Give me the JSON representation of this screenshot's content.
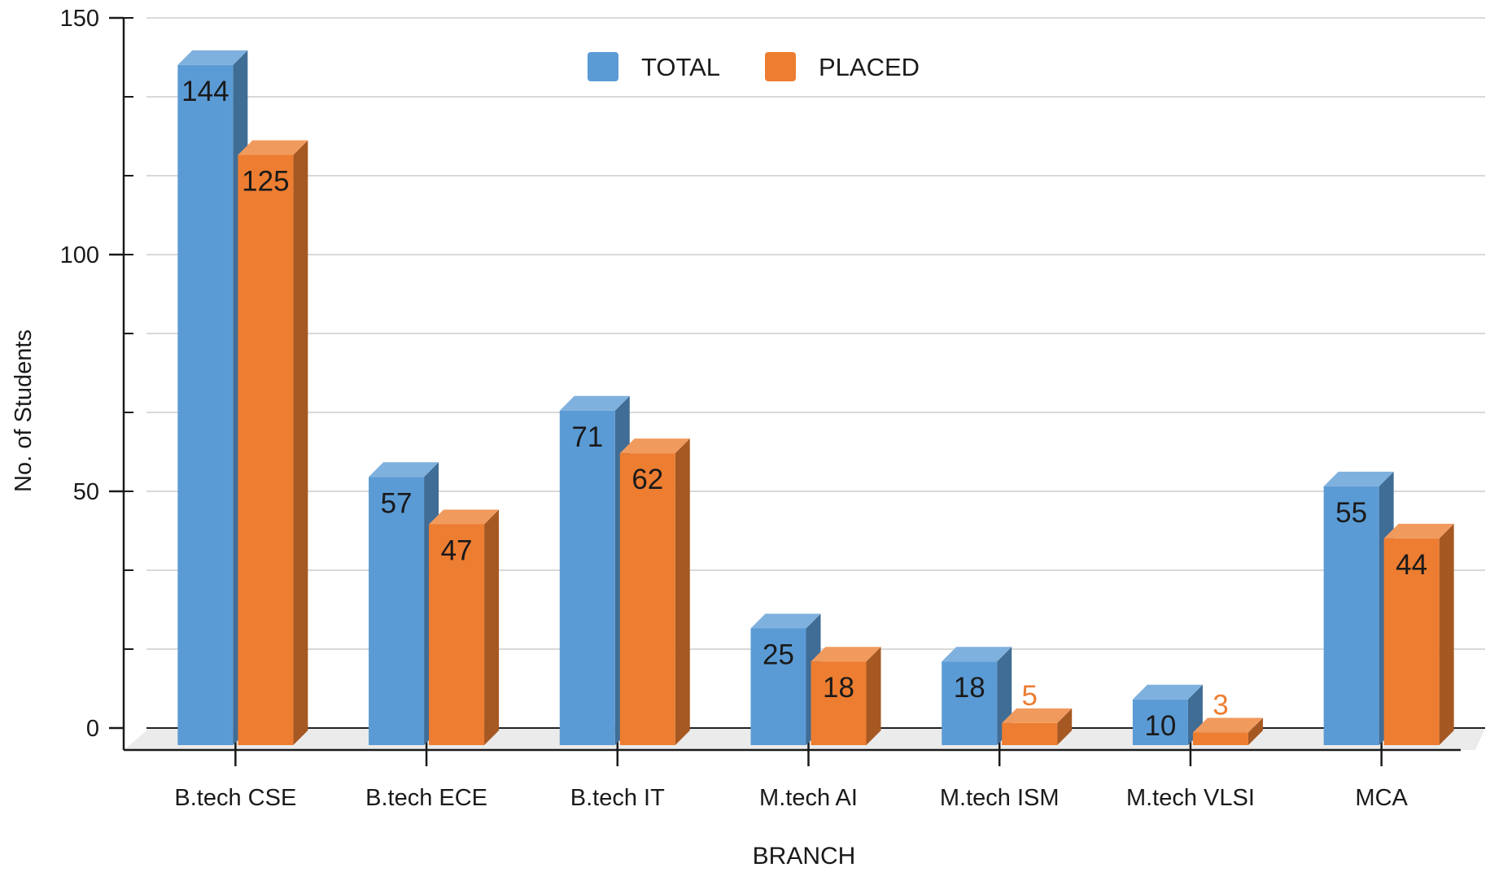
{
  "chart_data": {
    "type": "bar",
    "style": "3d-clustered-column",
    "title": "",
    "xlabel": "BRANCH",
    "ylabel": "No. of Students",
    "ylim": [
      0,
      150
    ],
    "y_ticks": [
      "0",
      "50",
      "100",
      "150"
    ],
    "grid": true,
    "legend_position": "top-center",
    "categories": [
      "B.tech CSE",
      "B.tech ECE",
      "B.tech IT",
      "M.tech AI",
      "M.tech ISM",
      "M.tech VLSI",
      "MCA"
    ],
    "series": [
      {
        "name": "TOTAL",
        "values": [
          144,
          57,
          71,
          25,
          18,
          10,
          55
        ],
        "color": "#5b9bd5",
        "label_color": "#1a1a1a"
      },
      {
        "name": "PLACED",
        "values": [
          125,
          47,
          62,
          18,
          5,
          3,
          44
        ],
        "color": "#ed7d31",
        "label_color": "#1a1a1a",
        "outside_label_color": "#ed7d31"
      }
    ]
  }
}
